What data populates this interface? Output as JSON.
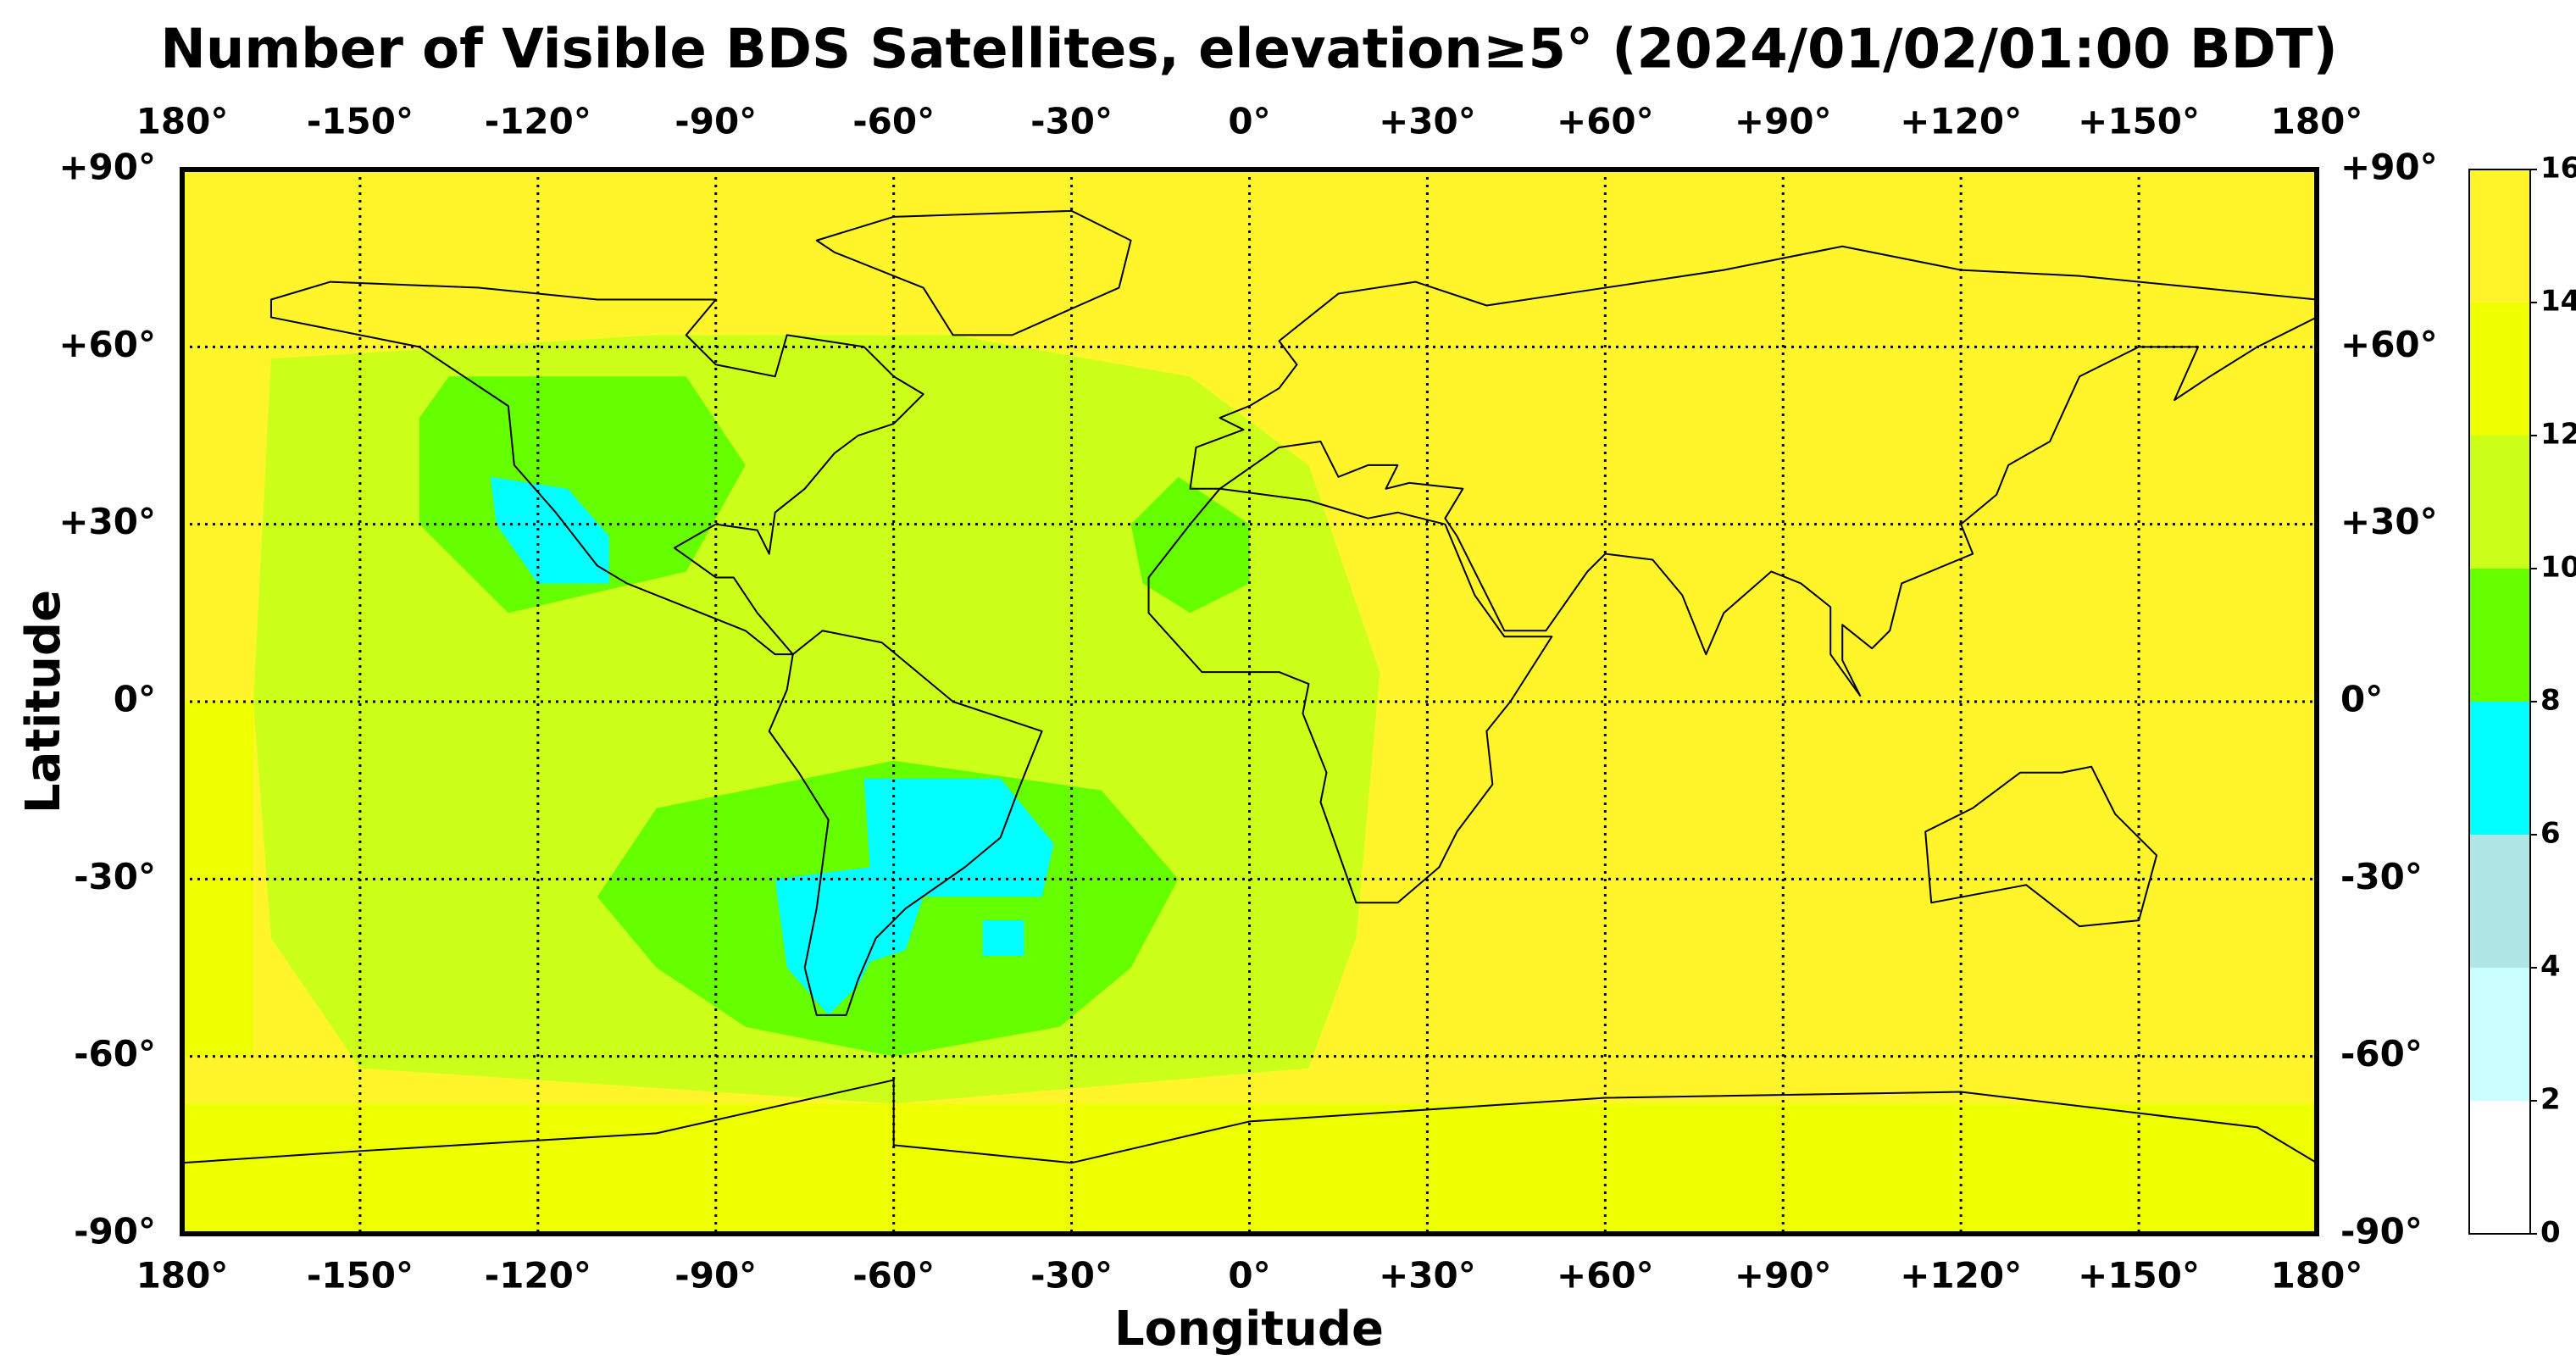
{
  "chart_data": {
    "type": "map",
    "title": "Number of Visible BDS Satellites, elevation≥5° (2024/01/02/01:00 BDT)",
    "x_label": "Longitude",
    "y_label": "Latitude",
    "xlim": [
      -180,
      180
    ],
    "ylim": [
      -90,
      90
    ],
    "xticks": [
      {
        "value": -180,
        "label": "180°"
      },
      {
        "value": -150,
        "label": "-150°"
      },
      {
        "value": -120,
        "label": "-120°"
      },
      {
        "value": -90,
        "label": "-90°"
      },
      {
        "value": -60,
        "label": "-60°"
      },
      {
        "value": -30,
        "label": "-30°"
      },
      {
        "value": 0,
        "label": "0°"
      },
      {
        "value": 30,
        "label": "+30°"
      },
      {
        "value": 60,
        "label": "+60°"
      },
      {
        "value": 90,
        "label": "+90°"
      },
      {
        "value": 120,
        "label": "+120°"
      },
      {
        "value": 150,
        "label": "+150°"
      },
      {
        "value": 180,
        "label": "180°"
      }
    ],
    "yticks": [
      {
        "value": 90,
        "label": "+90°"
      },
      {
        "value": 60,
        "label": "+60°"
      },
      {
        "value": 30,
        "label": "+30°"
      },
      {
        "value": 0,
        "label": "0°"
      },
      {
        "value": -30,
        "label": "-30°"
      },
      {
        "value": -60,
        "label": "-60°"
      },
      {
        "value": -90,
        "label": "-90°"
      }
    ],
    "grid": true,
    "colorbar": {
      "lim": [
        0,
        16
      ],
      "ticks": [
        0,
        2,
        4,
        6,
        8,
        10,
        12,
        14,
        16
      ],
      "colors": [
        "#ffffff",
        "#ccffff",
        "#b0e6e6",
        "#00ffff",
        "#66ff00",
        "#ccff1a",
        "#eeff00",
        "#fff52a"
      ]
    }
  }
}
